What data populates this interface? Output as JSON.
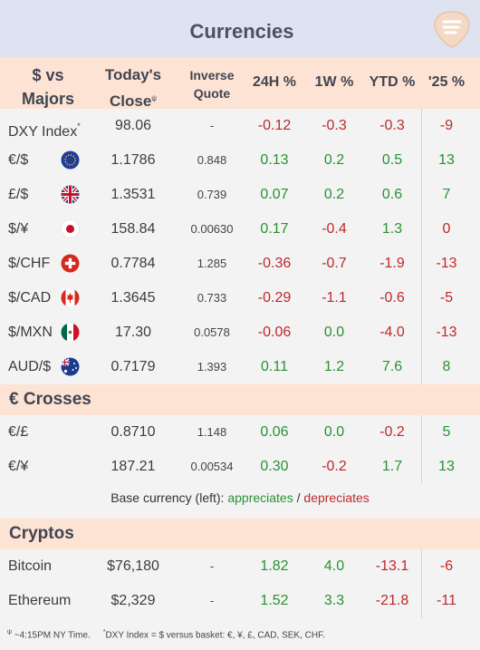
{
  "title": "Currencies",
  "header": {
    "col_pair_1": "$ vs",
    "col_pair_2": "Majors",
    "col_close_1": "Today's",
    "col_close_2": "Close",
    "col_close_mark": "ψ",
    "col_inverse_1": "Inverse",
    "col_inverse_2": "Quote",
    "col_24h": "24H %",
    "col_1w": "1W %",
    "col_ytd": "YTD %",
    "col_25": "'25 %"
  },
  "majors": [
    {
      "name": "DXY Index",
      "mark": "*",
      "flag": "",
      "close": "98.06",
      "inverse": "-",
      "h24": "-0.12",
      "w1": "-0.3",
      "ytd": "-0.3",
      "y25": "-9",
      "s24": "neg",
      "sw1": "neg",
      "sytd": "neg",
      "s25": "neg"
    },
    {
      "name": "€/$",
      "mark": "",
      "flag": "eu-flag-icon",
      "close": "1.1786",
      "inverse": "0.848",
      "h24": "0.13",
      "w1": "0.2",
      "ytd": "0.5",
      "y25": "13",
      "s24": "pos",
      "sw1": "pos",
      "sytd": "pos",
      "s25": "pos"
    },
    {
      "name": "£/$",
      "mark": "",
      "flag": "uk-flag-icon",
      "close": "1.3531",
      "inverse": "0.739",
      "h24": "0.07",
      "w1": "0.2",
      "ytd": "0.6",
      "y25": "7",
      "s24": "pos",
      "sw1": "pos",
      "sytd": "pos",
      "s25": "pos"
    },
    {
      "name": "$/¥",
      "mark": "",
      "flag": "japan-flag-icon",
      "close": "158.84",
      "inverse": "0.00630",
      "h24": "0.17",
      "w1": "-0.4",
      "ytd": "1.3",
      "y25": "0",
      "s24": "pos",
      "sw1": "neg",
      "sytd": "pos",
      "s25": "neu"
    },
    {
      "name": "$/CHF",
      "mark": "",
      "flag": "swiss-flag-icon",
      "close": "0.7784",
      "inverse": "1.285",
      "h24": "-0.36",
      "w1": "-0.7",
      "ytd": "-1.9",
      "y25": "-13",
      "s24": "neg",
      "sw1": "neg",
      "sytd": "neg",
      "s25": "neg"
    },
    {
      "name": "$/CAD",
      "mark": "",
      "flag": "canada-flag-icon",
      "close": "1.3645",
      "inverse": "0.733",
      "h24": "-0.29",
      "w1": "-1.1",
      "ytd": "-0.6",
      "y25": "-5",
      "s24": "neg",
      "sw1": "neg",
      "sytd": "neg",
      "s25": "neg"
    },
    {
      "name": "$/MXN",
      "mark": "",
      "flag": "mexico-flag-icon",
      "close": "17.30",
      "inverse": "0.0578",
      "h24": "-0.06",
      "w1": "0.0",
      "ytd": "-4.0",
      "y25": "-13",
      "s24": "neg",
      "sw1": "pos",
      "sytd": "neg",
      "s25": "neg"
    },
    {
      "name": "AUD/$",
      "mark": "",
      "flag": "australia-flag-icon",
      "close": "0.7179",
      "inverse": "1.393",
      "h24": "0.11",
      "w1": "1.2",
      "ytd": "7.6",
      "y25": "8",
      "s24": "pos",
      "sw1": "pos",
      "sytd": "pos",
      "s25": "pos"
    }
  ],
  "crosses_title": "€ Crosses",
  "crosses": [
    {
      "name": "€/£",
      "close": "0.8710",
      "inverse": "1.148",
      "h24": "0.06",
      "w1": "0.0",
      "ytd": "-0.2",
      "y25": "5",
      "s24": "pos",
      "sw1": "pos",
      "sytd": "neg",
      "s25": "pos"
    },
    {
      "name": "€/¥",
      "close": "187.21",
      "inverse": "0.00534",
      "h24": "0.30",
      "w1": "-0.2",
      "ytd": "1.7",
      "y25": "13",
      "s24": "pos",
      "sw1": "neg",
      "sytd": "pos",
      "s25": "pos"
    }
  ],
  "legend": {
    "prefix": "Base currency (left): ",
    "up": "appreciates",
    "sep": " / ",
    "down": "depreciates"
  },
  "cryptos_title": "Cryptos",
  "cryptos": [
    {
      "name": "Bitcoin",
      "close": "$76,180",
      "inverse": "-",
      "h24": "1.82",
      "w1": "4.0",
      "ytd": "-13.1",
      "y25": "-6",
      "s24": "pos",
      "sw1": "pos",
      "sytd": "neg",
      "s25": "neg"
    },
    {
      "name": "Ethereum",
      "close": "$2,329",
      "inverse": "-",
      "h24": "1.52",
      "w1": "3.3",
      "ytd": "-21.8",
      "y25": "-11",
      "s24": "pos",
      "sw1": "pos",
      "sytd": "neg",
      "s25": "neg"
    }
  ],
  "footer": {
    "mark1": "ψ",
    "note1": " ~4:15PM NY Time.",
    "mark2": "*",
    "note2": "DXY Index = $ versus basket: €, ¥, £, CAD, SEK, CHF."
  },
  "colors": {
    "positive": "#2a9133",
    "negative": "#c0282b",
    "header_bg": "#fde3d3",
    "title_bg": "#dfe3f1"
  }
}
